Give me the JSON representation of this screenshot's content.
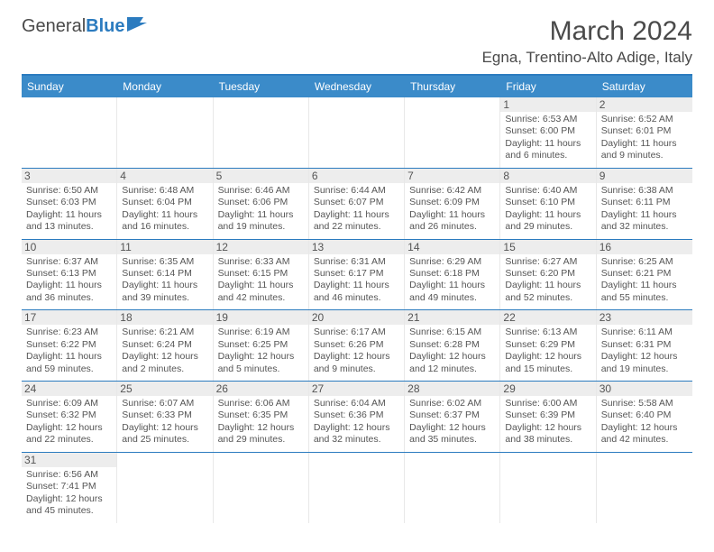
{
  "logo": {
    "text1": "General",
    "text2": "Blue"
  },
  "title": "March 2024",
  "location": "Egna, Trentino-Alto Adige, Italy",
  "colors": {
    "header_bg": "#3b8bc9",
    "border": "#2b7bbf",
    "daynum_bg": "#ededed",
    "text": "#555555"
  },
  "dayNames": [
    "Sunday",
    "Monday",
    "Tuesday",
    "Wednesday",
    "Thursday",
    "Friday",
    "Saturday"
  ],
  "weeks": [
    [
      null,
      null,
      null,
      null,
      null,
      {
        "n": "1",
        "sr": "Sunrise: 6:53 AM",
        "ss": "Sunset: 6:00 PM",
        "dl": "Daylight: 11 hours and 6 minutes."
      },
      {
        "n": "2",
        "sr": "Sunrise: 6:52 AM",
        "ss": "Sunset: 6:01 PM",
        "dl": "Daylight: 11 hours and 9 minutes."
      }
    ],
    [
      {
        "n": "3",
        "sr": "Sunrise: 6:50 AM",
        "ss": "Sunset: 6:03 PM",
        "dl": "Daylight: 11 hours and 13 minutes."
      },
      {
        "n": "4",
        "sr": "Sunrise: 6:48 AM",
        "ss": "Sunset: 6:04 PM",
        "dl": "Daylight: 11 hours and 16 minutes."
      },
      {
        "n": "5",
        "sr": "Sunrise: 6:46 AM",
        "ss": "Sunset: 6:06 PM",
        "dl": "Daylight: 11 hours and 19 minutes."
      },
      {
        "n": "6",
        "sr": "Sunrise: 6:44 AM",
        "ss": "Sunset: 6:07 PM",
        "dl": "Daylight: 11 hours and 22 minutes."
      },
      {
        "n": "7",
        "sr": "Sunrise: 6:42 AM",
        "ss": "Sunset: 6:09 PM",
        "dl": "Daylight: 11 hours and 26 minutes."
      },
      {
        "n": "8",
        "sr": "Sunrise: 6:40 AM",
        "ss": "Sunset: 6:10 PM",
        "dl": "Daylight: 11 hours and 29 minutes."
      },
      {
        "n": "9",
        "sr": "Sunrise: 6:38 AM",
        "ss": "Sunset: 6:11 PM",
        "dl": "Daylight: 11 hours and 32 minutes."
      }
    ],
    [
      {
        "n": "10",
        "sr": "Sunrise: 6:37 AM",
        "ss": "Sunset: 6:13 PM",
        "dl": "Daylight: 11 hours and 36 minutes."
      },
      {
        "n": "11",
        "sr": "Sunrise: 6:35 AM",
        "ss": "Sunset: 6:14 PM",
        "dl": "Daylight: 11 hours and 39 minutes."
      },
      {
        "n": "12",
        "sr": "Sunrise: 6:33 AM",
        "ss": "Sunset: 6:15 PM",
        "dl": "Daylight: 11 hours and 42 minutes."
      },
      {
        "n": "13",
        "sr": "Sunrise: 6:31 AM",
        "ss": "Sunset: 6:17 PM",
        "dl": "Daylight: 11 hours and 46 minutes."
      },
      {
        "n": "14",
        "sr": "Sunrise: 6:29 AM",
        "ss": "Sunset: 6:18 PM",
        "dl": "Daylight: 11 hours and 49 minutes."
      },
      {
        "n": "15",
        "sr": "Sunrise: 6:27 AM",
        "ss": "Sunset: 6:20 PM",
        "dl": "Daylight: 11 hours and 52 minutes."
      },
      {
        "n": "16",
        "sr": "Sunrise: 6:25 AM",
        "ss": "Sunset: 6:21 PM",
        "dl": "Daylight: 11 hours and 55 minutes."
      }
    ],
    [
      {
        "n": "17",
        "sr": "Sunrise: 6:23 AM",
        "ss": "Sunset: 6:22 PM",
        "dl": "Daylight: 11 hours and 59 minutes."
      },
      {
        "n": "18",
        "sr": "Sunrise: 6:21 AM",
        "ss": "Sunset: 6:24 PM",
        "dl": "Daylight: 12 hours and 2 minutes."
      },
      {
        "n": "19",
        "sr": "Sunrise: 6:19 AM",
        "ss": "Sunset: 6:25 PM",
        "dl": "Daylight: 12 hours and 5 minutes."
      },
      {
        "n": "20",
        "sr": "Sunrise: 6:17 AM",
        "ss": "Sunset: 6:26 PM",
        "dl": "Daylight: 12 hours and 9 minutes."
      },
      {
        "n": "21",
        "sr": "Sunrise: 6:15 AM",
        "ss": "Sunset: 6:28 PM",
        "dl": "Daylight: 12 hours and 12 minutes."
      },
      {
        "n": "22",
        "sr": "Sunrise: 6:13 AM",
        "ss": "Sunset: 6:29 PM",
        "dl": "Daylight: 12 hours and 15 minutes."
      },
      {
        "n": "23",
        "sr": "Sunrise: 6:11 AM",
        "ss": "Sunset: 6:31 PM",
        "dl": "Daylight: 12 hours and 19 minutes."
      }
    ],
    [
      {
        "n": "24",
        "sr": "Sunrise: 6:09 AM",
        "ss": "Sunset: 6:32 PM",
        "dl": "Daylight: 12 hours and 22 minutes."
      },
      {
        "n": "25",
        "sr": "Sunrise: 6:07 AM",
        "ss": "Sunset: 6:33 PM",
        "dl": "Daylight: 12 hours and 25 minutes."
      },
      {
        "n": "26",
        "sr": "Sunrise: 6:06 AM",
        "ss": "Sunset: 6:35 PM",
        "dl": "Daylight: 12 hours and 29 minutes."
      },
      {
        "n": "27",
        "sr": "Sunrise: 6:04 AM",
        "ss": "Sunset: 6:36 PM",
        "dl": "Daylight: 12 hours and 32 minutes."
      },
      {
        "n": "28",
        "sr": "Sunrise: 6:02 AM",
        "ss": "Sunset: 6:37 PM",
        "dl": "Daylight: 12 hours and 35 minutes."
      },
      {
        "n": "29",
        "sr": "Sunrise: 6:00 AM",
        "ss": "Sunset: 6:39 PM",
        "dl": "Daylight: 12 hours and 38 minutes."
      },
      {
        "n": "30",
        "sr": "Sunrise: 5:58 AM",
        "ss": "Sunset: 6:40 PM",
        "dl": "Daylight: 12 hours and 42 minutes."
      }
    ],
    [
      {
        "n": "31",
        "sr": "Sunrise: 6:56 AM",
        "ss": "Sunset: 7:41 PM",
        "dl": "Daylight: 12 hours and 45 minutes."
      },
      null,
      null,
      null,
      null,
      null,
      null
    ]
  ]
}
